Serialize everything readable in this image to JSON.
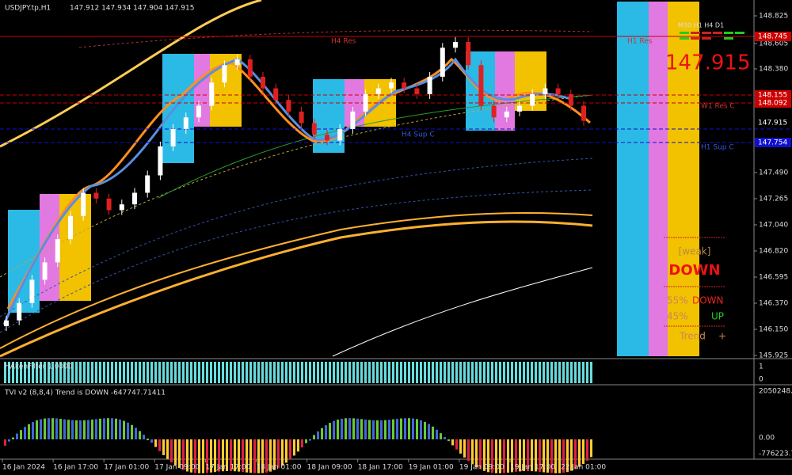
{
  "header": {
    "symbol": "USDJPY.tp,H1",
    "ohlc": "147.912 147.934 147.904 147.915"
  },
  "price_ticks": [
    "148.825",
    "148.605",
    "148.380",
    "147.490",
    "147.265",
    "147.040",
    "146.820",
    "146.595",
    "146.370",
    "146.150",
    "145.925"
  ],
  "price_tags": [
    {
      "label": "148.745",
      "color": "#cc0000"
    },
    {
      "label": "148.155",
      "color": "#cc0000"
    },
    {
      "label": "148.092",
      "color": "#cc0000"
    },
    {
      "label": "147.915",
      "color": "#ffffff"
    },
    {
      "label": "147.754",
      "color": "#1010cc"
    }
  ],
  "time_labels": [
    "16 Jan 2024",
    "16 Jan 17:00",
    "17 Jan 01:00",
    "17 Jan 09:00",
    "17 Jan 17:00",
    "18 Jan 01:00",
    "18 Jan 09:00",
    "18 Jan 17:00",
    "19 Jan 01:00",
    "19 Jan 09:00",
    "19 Jan 17:00",
    "22 Jan 01:00"
  ],
  "chart_data": {
    "type": "candlestick",
    "ylim": [
      145.925,
      148.825
    ],
    "closes": [
      146.2,
      146.35,
      146.55,
      146.7,
      146.9,
      147.1,
      147.3,
      147.25,
      147.15,
      147.2,
      147.3,
      147.45,
      147.7,
      147.85,
      147.95,
      148.05,
      148.25,
      148.4,
      148.45,
      148.3,
      148.2,
      148.1,
      148.0,
      147.9,
      147.8,
      147.75,
      147.85,
      148.0,
      148.15,
      148.2,
      148.25,
      148.2,
      148.15,
      148.3,
      148.55,
      148.6,
      148.4,
      148.05,
      147.95,
      148.0,
      148.05,
      148.15,
      148.2,
      148.15,
      148.05,
      147.92
    ]
  },
  "levels": {
    "h4_res": "H4 Res",
    "h1_res": "H1 Res",
    "w1_res": "W1 Res C",
    "h4_sup": "H4 Sup C",
    "h1_sup": "H1 Sup C"
  },
  "panel": {
    "timeframes": "M30 H1 H4 D1",
    "price": "147.915",
    "strength": "[weak]",
    "direction": "DOWN",
    "down_pct": "55%",
    "down": "DOWN",
    "up_pct": "45%",
    "up": "UP",
    "trend": "Trend",
    "trend_sign": "+"
  },
  "haken": {
    "title": "HAkenFilter 1.0000",
    "top": "1",
    "bottom": "0"
  },
  "tvi": {
    "title": "TVI v2 (8,8,4) Trend is DOWN -647747.71411",
    "top": "2050248.7",
    "zero": "0.00",
    "bottom": "-776223.7"
  }
}
